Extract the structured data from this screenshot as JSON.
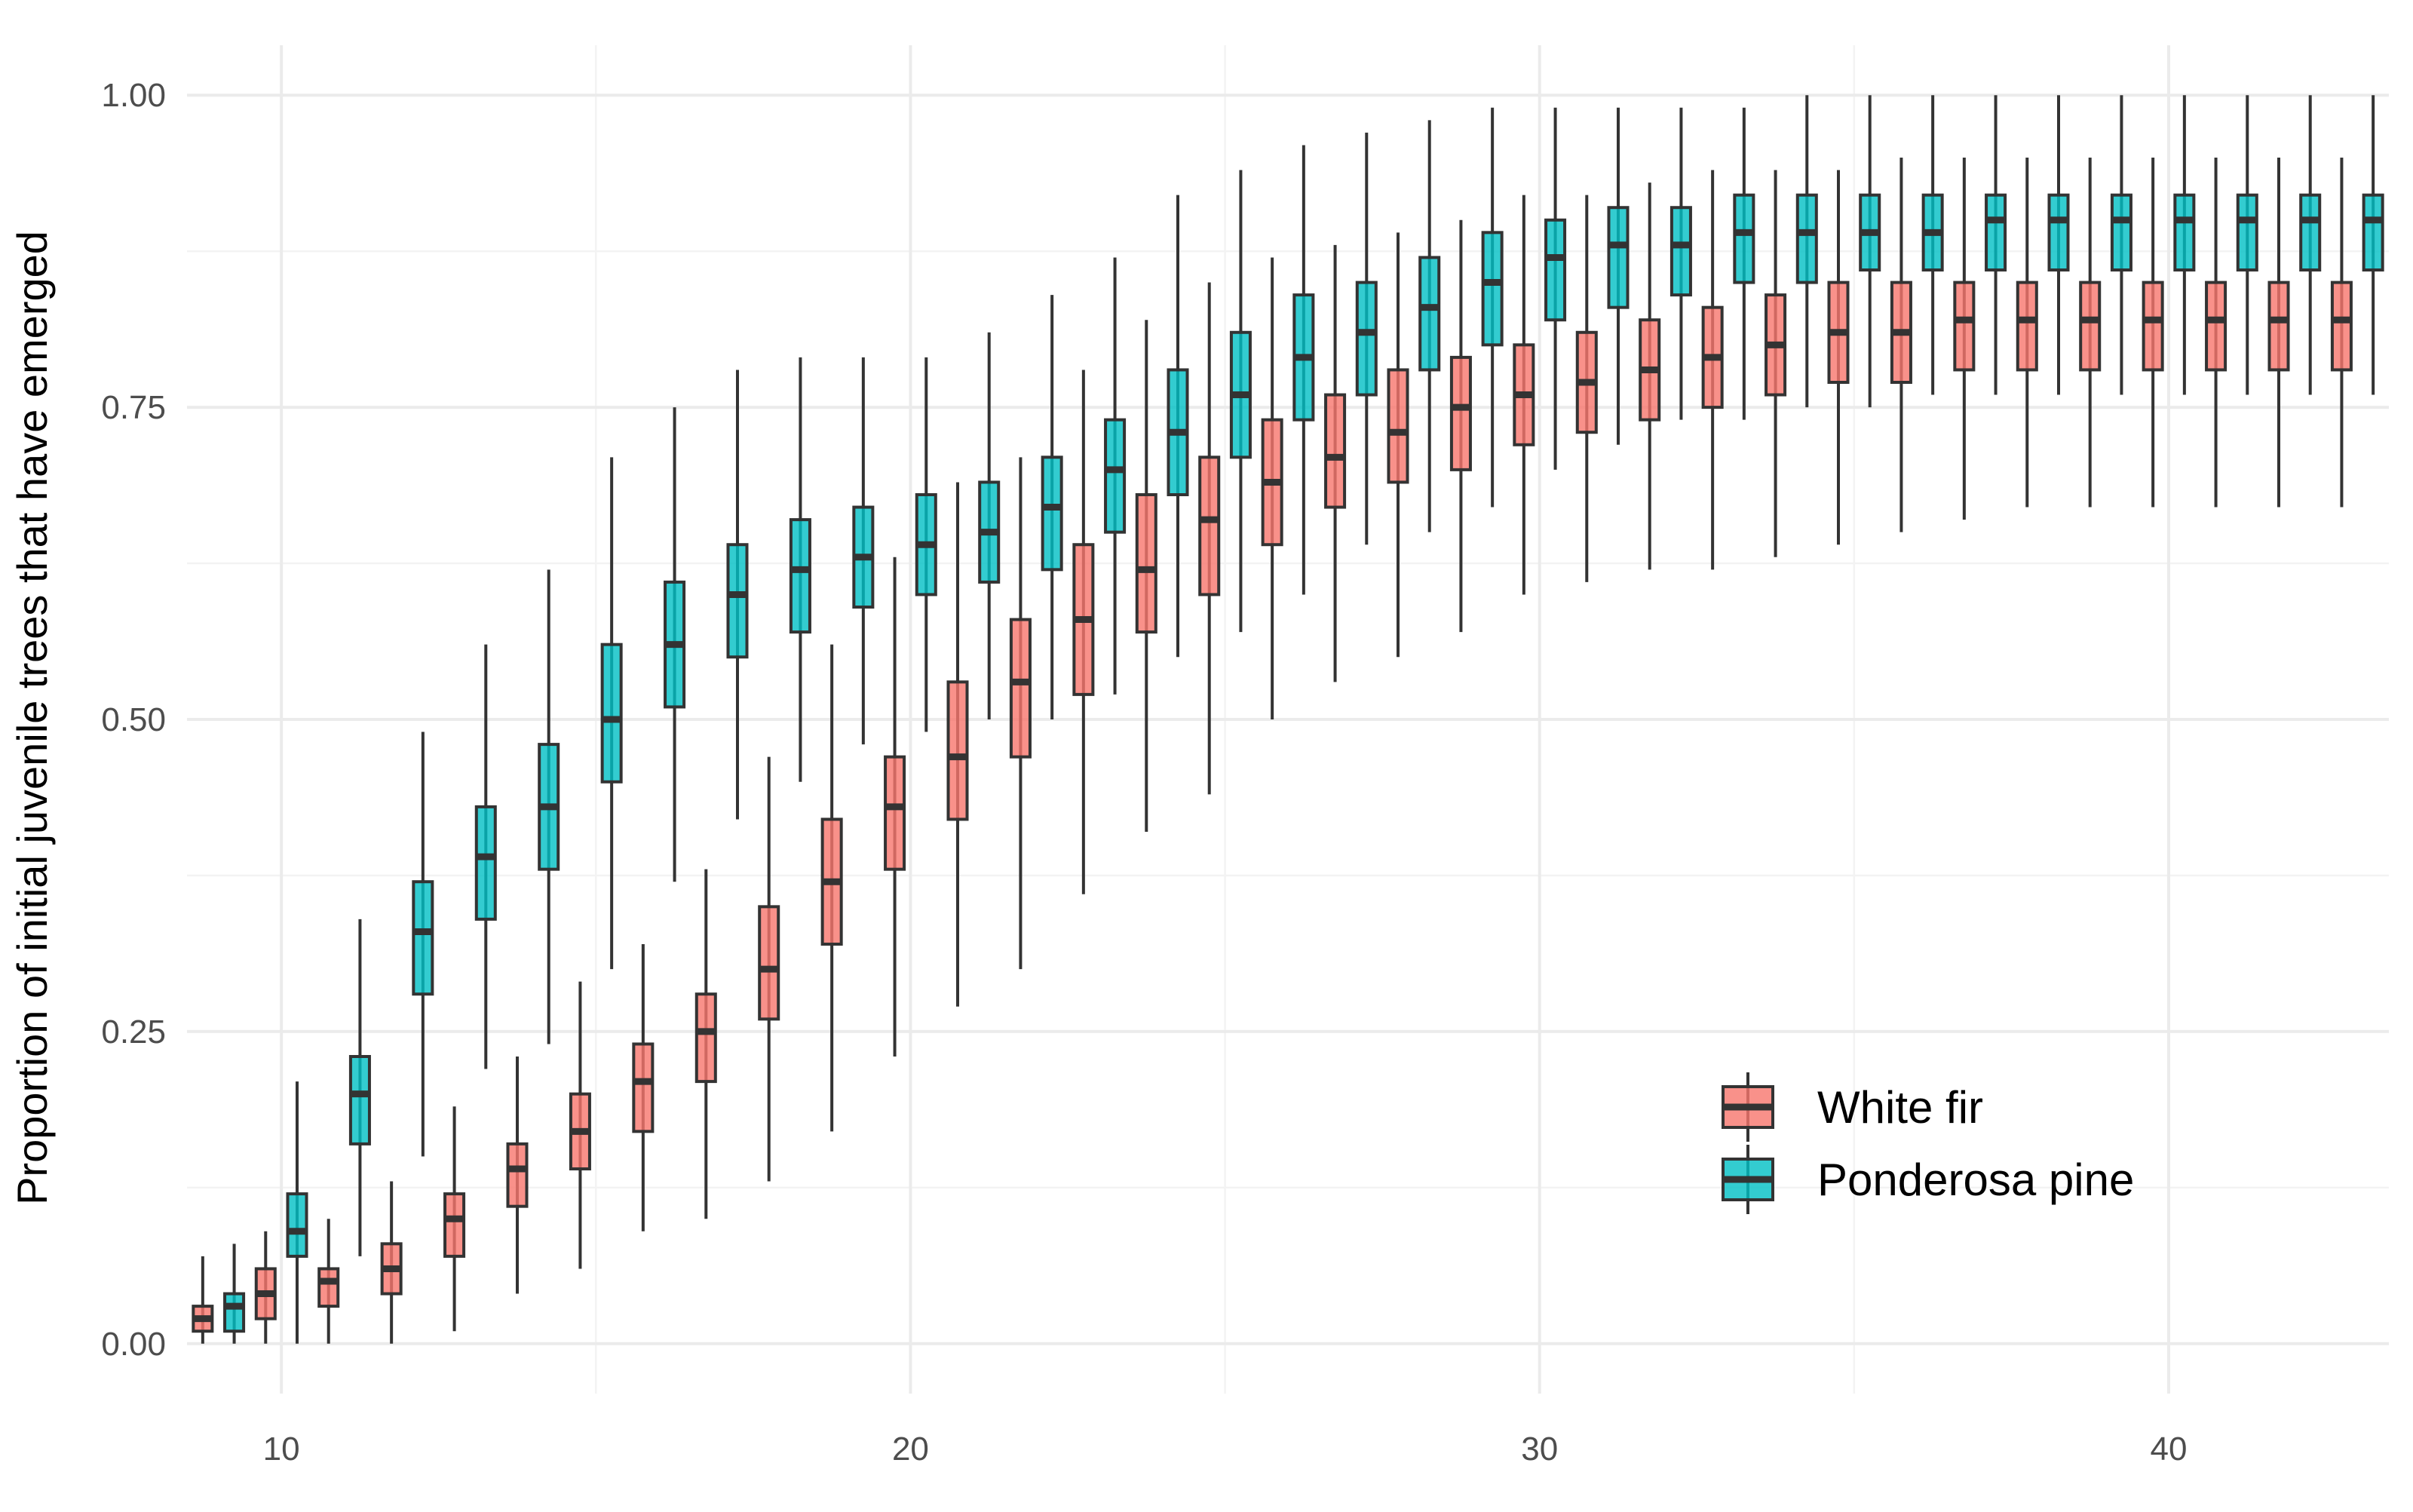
{
  "chart_data": {
    "type": "boxplot",
    "xlabel": "",
    "ylabel": "Proportion of initial juvenile trees that have emerged",
    "xlim": [
      8.5,
      43.5
    ],
    "ylim": [
      -0.04,
      1.04
    ],
    "x_ticks": [
      10,
      20,
      30,
      40
    ],
    "x_tick_labels": [
      "10",
      "20",
      "30",
      "40"
    ],
    "y_ticks": [
      0,
      0.25,
      0.5,
      0.75,
      1.0
    ],
    "y_tick_labels": [
      "0.00",
      "0.25",
      "0.50",
      "0.75",
      "1.00"
    ],
    "y_minor_ticks": [
      0.125,
      0.375,
      0.625,
      0.875
    ],
    "grid": true,
    "legend_position": "inside-bottom-right",
    "series": [
      {
        "name": "White fir",
        "color": "#F8766D",
        "offset": -0.25,
        "x": [
          9,
          10,
          11,
          12,
          13,
          14,
          15,
          16,
          17,
          18,
          19,
          20,
          21,
          22,
          23,
          24,
          25,
          26,
          27,
          28,
          29,
          30,
          31,
          32,
          33,
          34,
          35,
          36,
          37,
          38,
          39,
          40,
          41,
          42,
          43
        ],
        "min": [
          0.0,
          0.0,
          0.0,
          0.0,
          0.01,
          0.04,
          0.06,
          0.09,
          0.1,
          0.13,
          0.17,
          0.23,
          0.27,
          0.3,
          0.36,
          0.41,
          0.44,
          0.5,
          0.53,
          0.55,
          0.57,
          0.6,
          0.61,
          0.62,
          0.62,
          0.63,
          0.64,
          0.65,
          0.66,
          0.67,
          0.67,
          0.67,
          0.67,
          0.67,
          0.67
        ],
        "q1": [
          0.01,
          0.02,
          0.03,
          0.04,
          0.07,
          0.11,
          0.14,
          0.17,
          0.21,
          0.26,
          0.32,
          0.38,
          0.42,
          0.47,
          0.52,
          0.57,
          0.6,
          0.64,
          0.67,
          0.69,
          0.7,
          0.72,
          0.73,
          0.74,
          0.75,
          0.76,
          0.77,
          0.77,
          0.78,
          0.78,
          0.78,
          0.78,
          0.78,
          0.78,
          0.78
        ],
        "median": [
          0.02,
          0.04,
          0.05,
          0.06,
          0.1,
          0.14,
          0.17,
          0.21,
          0.25,
          0.3,
          0.37,
          0.43,
          0.47,
          0.53,
          0.58,
          0.62,
          0.66,
          0.69,
          0.71,
          0.73,
          0.75,
          0.76,
          0.77,
          0.78,
          0.79,
          0.8,
          0.81,
          0.81,
          0.82,
          0.82,
          0.82,
          0.82,
          0.82,
          0.82,
          0.82
        ],
        "q3": [
          0.03,
          0.06,
          0.06,
          0.08,
          0.12,
          0.16,
          0.2,
          0.24,
          0.28,
          0.35,
          0.42,
          0.47,
          0.53,
          0.58,
          0.64,
          0.68,
          0.71,
          0.74,
          0.76,
          0.78,
          0.79,
          0.8,
          0.81,
          0.82,
          0.83,
          0.84,
          0.85,
          0.85,
          0.85,
          0.85,
          0.85,
          0.85,
          0.85,
          0.85,
          0.85
        ],
        "max": [
          0.07,
          0.09,
          0.1,
          0.13,
          0.19,
          0.23,
          0.29,
          0.32,
          0.38,
          0.47,
          0.56,
          0.63,
          0.69,
          0.71,
          0.78,
          0.82,
          0.85,
          0.87,
          0.88,
          0.89,
          0.9,
          0.92,
          0.92,
          0.93,
          0.94,
          0.94,
          0.94,
          0.95,
          0.95,
          0.95,
          0.95,
          0.95,
          0.95,
          0.95,
          0.95
        ]
      },
      {
        "name": "Ponderosa pine",
        "color": "#00BFC4",
        "offset": 0.25,
        "x": [
          9,
          10,
          11,
          12,
          13,
          14,
          15,
          16,
          17,
          18,
          19,
          20,
          21,
          22,
          23,
          24,
          25,
          26,
          27,
          28,
          29,
          30,
          31,
          32,
          33,
          34,
          35,
          36,
          37,
          38,
          39,
          40,
          41,
          42,
          43
        ],
        "min": [
          0.0,
          0.0,
          0.07,
          0.15,
          0.22,
          0.24,
          0.3,
          0.37,
          0.42,
          0.45,
          0.48,
          0.49,
          0.5,
          0.5,
          0.52,
          0.55,
          0.57,
          0.6,
          0.64,
          0.65,
          0.67,
          0.7,
          0.72,
          0.74,
          0.74,
          0.75,
          0.75,
          0.76,
          0.76,
          0.76,
          0.76,
          0.76,
          0.76,
          0.76,
          0.76
        ],
        "q1": [
          0.01,
          0.07,
          0.16,
          0.28,
          0.34,
          0.38,
          0.45,
          0.51,
          0.55,
          0.57,
          0.59,
          0.6,
          0.61,
          0.62,
          0.65,
          0.68,
          0.71,
          0.74,
          0.76,
          0.78,
          0.8,
          0.82,
          0.83,
          0.84,
          0.85,
          0.85,
          0.86,
          0.86,
          0.86,
          0.86,
          0.86,
          0.86,
          0.86,
          0.86,
          0.86
        ],
        "median": [
          0.03,
          0.09,
          0.2,
          0.33,
          0.39,
          0.43,
          0.5,
          0.56,
          0.6,
          0.62,
          0.63,
          0.64,
          0.65,
          0.67,
          0.7,
          0.73,
          0.76,
          0.79,
          0.81,
          0.83,
          0.85,
          0.87,
          0.88,
          0.88,
          0.89,
          0.89,
          0.89,
          0.89,
          0.9,
          0.9,
          0.9,
          0.9,
          0.9,
          0.9,
          0.9
        ],
        "q3": [
          0.04,
          0.12,
          0.23,
          0.37,
          0.43,
          0.48,
          0.56,
          0.61,
          0.64,
          0.66,
          0.67,
          0.68,
          0.69,
          0.71,
          0.74,
          0.78,
          0.81,
          0.84,
          0.85,
          0.87,
          0.89,
          0.9,
          0.91,
          0.91,
          0.92,
          0.92,
          0.92,
          0.92,
          0.92,
          0.92,
          0.92,
          0.92,
          0.92,
          0.92,
          0.92
        ],
        "max": [
          0.08,
          0.21,
          0.34,
          0.49,
          0.56,
          0.62,
          0.71,
          0.75,
          0.78,
          0.79,
          0.79,
          0.79,
          0.81,
          0.84,
          0.87,
          0.92,
          0.94,
          0.96,
          0.97,
          0.98,
          0.99,
          0.99,
          0.99,
          0.99,
          0.99,
          1.0,
          1.0,
          1.0,
          1.0,
          1.0,
          1.0,
          1.0,
          1.0,
          1.0,
          1.0
        ]
      }
    ]
  }
}
